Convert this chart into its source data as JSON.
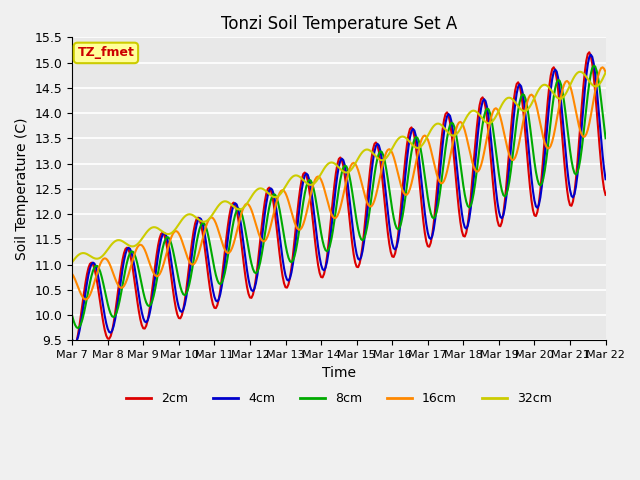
{
  "title": "Tonzi Soil Temperature Set A",
  "xlabel": "Time",
  "ylabel": "Soil Temperature (C)",
  "ylim": [
    9.5,
    15.5
  ],
  "bg_color": "#e8e8e8",
  "legend_label": "TZ_fmet",
  "legend_box_color": "#ffff99",
  "legend_box_edge": "#cccc00",
  "series_colors": {
    "2cm": "#dd0000",
    "4cm": "#0000cc",
    "8cm": "#00aa00",
    "16cm": "#ff8800",
    "32cm": "#cccc00"
  },
  "xtick_labels": [
    "Mar 7",
    "Mar 8",
    "Mar 9",
    "Mar 10",
    "Mar 11",
    "Mar 12",
    "Mar 13",
    "Mar 14",
    "Mar 15",
    "Mar 16",
    "Mar 17",
    "Mar 18",
    "Mar 19",
    "Mar 20",
    "Mar 21",
    "Mar 22"
  ],
  "ytick_values": [
    9.5,
    10.0,
    10.5,
    11.0,
    11.5,
    12.0,
    12.5,
    13.0,
    13.5,
    14.0,
    14.5,
    15.0,
    15.5
  ]
}
